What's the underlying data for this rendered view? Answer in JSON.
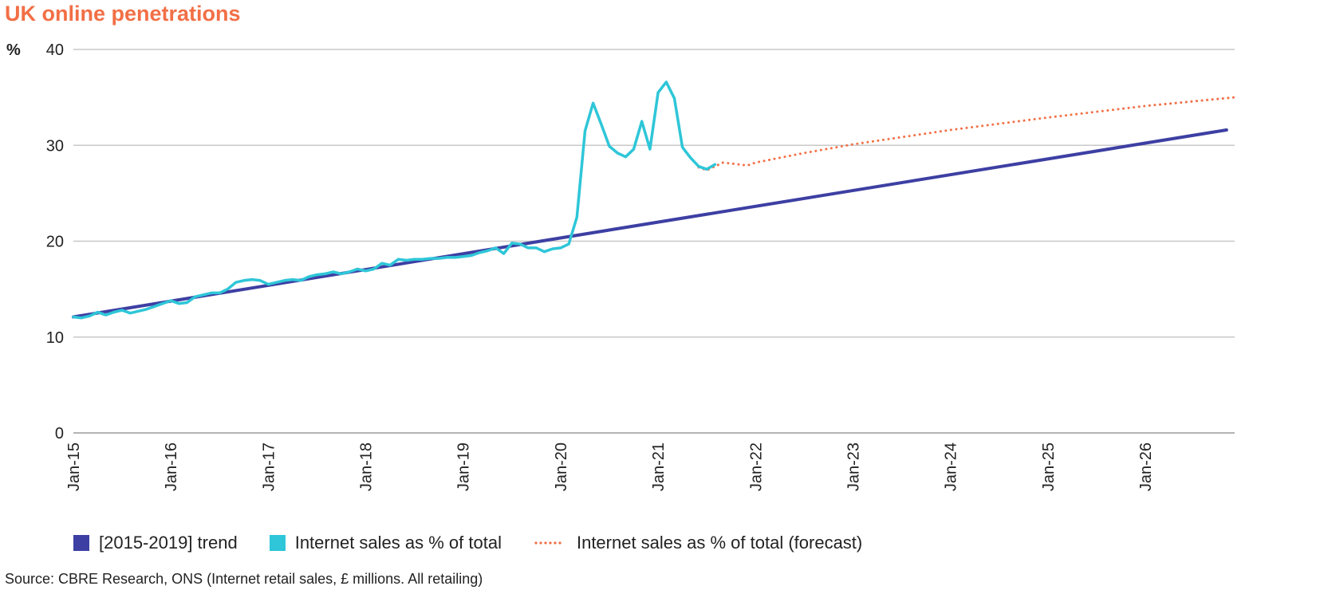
{
  "title": "UK online penetrations",
  "unit_label": "%",
  "source": "Source: CBRE Research, ONS (Internet retail sales, £ millions. All retailing)",
  "colors": {
    "title": "#f26f46",
    "trend": "#3d3fa3",
    "actual": "#2ec6d8",
    "forecast": "#f26f46",
    "grid": "#c8c8c8"
  },
  "legend": {
    "trend": "[2015-2019] trend",
    "actual": "Internet sales as % of total",
    "forecast": "Internet sales as % of total (forecast)"
  },
  "chart_data": {
    "type": "line",
    "x_unit": "months since Jan-15",
    "xlim": [
      0,
      143
    ],
    "ylim": [
      0,
      40
    ],
    "yticks": [
      0,
      10,
      20,
      30,
      40
    ],
    "xticks": [
      {
        "x": 0,
        "label": "Jan-15"
      },
      {
        "x": 12,
        "label": "Jan-16"
      },
      {
        "x": 24,
        "label": "Jan-17"
      },
      {
        "x": 36,
        "label": "Jan-18"
      },
      {
        "x": 48,
        "label": "Jan-19"
      },
      {
        "x": 60,
        "label": "Jan-20"
      },
      {
        "x": 72,
        "label": "Jan-21"
      },
      {
        "x": 84,
        "label": "Jan-22"
      },
      {
        "x": 96,
        "label": "Jan-23"
      },
      {
        "x": 108,
        "label": "Jan-24"
      },
      {
        "x": 120,
        "label": "Jan-25"
      },
      {
        "x": 132,
        "label": "Jan-26"
      }
    ],
    "grid": true,
    "legend_position": "bottom",
    "series": [
      {
        "name": "[2015-2019] trend",
        "key": "trend",
        "style": "solid",
        "points": [
          [
            0,
            12.1
          ],
          [
            142,
            31.6
          ]
        ]
      },
      {
        "name": "Internet sales as % of total",
        "key": "actual",
        "style": "solid",
        "points": [
          [
            0,
            12.1
          ],
          [
            1,
            12.0
          ],
          [
            2,
            12.2
          ],
          [
            3,
            12.6
          ],
          [
            4,
            12.3
          ],
          [
            5,
            12.6
          ],
          [
            6,
            12.8
          ],
          [
            7,
            12.5
          ],
          [
            8,
            12.7
          ],
          [
            9,
            12.9
          ],
          [
            10,
            13.2
          ],
          [
            11,
            13.5
          ],
          [
            12,
            13.8
          ],
          [
            13,
            13.5
          ],
          [
            14,
            13.6
          ],
          [
            15,
            14.2
          ],
          [
            16,
            14.4
          ],
          [
            17,
            14.6
          ],
          [
            18,
            14.6
          ],
          [
            19,
            15.0
          ],
          [
            20,
            15.7
          ],
          [
            21,
            15.9
          ],
          [
            22,
            16.0
          ],
          [
            23,
            15.9
          ],
          [
            24,
            15.5
          ],
          [
            25,
            15.7
          ],
          [
            26,
            15.9
          ],
          [
            27,
            16.0
          ],
          [
            28,
            15.9
          ],
          [
            29,
            16.3
          ],
          [
            30,
            16.5
          ],
          [
            31,
            16.6
          ],
          [
            32,
            16.8
          ],
          [
            33,
            16.6
          ],
          [
            34,
            16.8
          ],
          [
            35,
            17.1
          ],
          [
            36,
            16.9
          ],
          [
            37,
            17.1
          ],
          [
            38,
            17.7
          ],
          [
            39,
            17.5
          ],
          [
            40,
            18.1
          ],
          [
            41,
            18.0
          ],
          [
            42,
            18.1
          ],
          [
            43,
            18.1
          ],
          [
            44,
            18.2
          ],
          [
            45,
            18.2
          ],
          [
            46,
            18.3
          ],
          [
            47,
            18.3
          ],
          [
            48,
            18.4
          ],
          [
            49,
            18.5
          ],
          [
            50,
            18.8
          ],
          [
            51,
            19.0
          ],
          [
            52,
            19.3
          ],
          [
            53,
            18.7
          ],
          [
            54,
            19.8
          ],
          [
            55,
            19.7
          ],
          [
            56,
            19.3
          ],
          [
            57,
            19.3
          ],
          [
            58,
            18.9
          ],
          [
            59,
            19.2
          ],
          [
            60,
            19.3
          ],
          [
            61,
            19.7
          ],
          [
            62,
            22.5
          ],
          [
            63,
            31.5
          ],
          [
            64,
            34.4
          ],
          [
            65,
            32.2
          ],
          [
            66,
            29.9
          ],
          [
            67,
            29.2
          ],
          [
            68,
            28.8
          ],
          [
            69,
            29.6
          ],
          [
            70,
            32.5
          ],
          [
            71,
            29.6
          ],
          [
            72,
            35.5
          ],
          [
            73,
            36.6
          ],
          [
            74,
            34.9
          ],
          [
            75,
            29.8
          ],
          [
            76,
            28.7
          ],
          [
            77,
            27.8
          ],
          [
            78,
            27.5
          ],
          [
            79,
            28.0
          ]
        ]
      },
      {
        "name": "Internet sales as % of total (forecast)",
        "key": "forecast",
        "style": "dotted",
        "points": [
          [
            77,
            27.7
          ],
          [
            78,
            27.4
          ],
          [
            79,
            27.8
          ],
          [
            80,
            28.2
          ],
          [
            81,
            28.1
          ],
          [
            82,
            28.0
          ],
          [
            83,
            27.9
          ],
          [
            84,
            28.2
          ],
          [
            90,
            29.2
          ],
          [
            96,
            30.1
          ],
          [
            108,
            31.6
          ],
          [
            120,
            32.9
          ],
          [
            132,
            34.1
          ],
          [
            143,
            35.0
          ]
        ]
      }
    ]
  }
}
